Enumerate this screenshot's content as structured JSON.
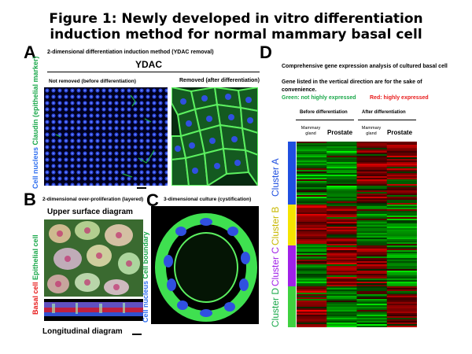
{
  "figure": {
    "title_line1": "Figure 1: Newly developed in vitro differentiation",
    "title_line2": "induction method for normal mammary basal cell"
  },
  "panel_a": {
    "label": "A",
    "subtitle": "2-dimensional differentiation induction method (YDAC removal)",
    "ydac": "YDAC",
    "col_left": "Not removed (before differentiation)",
    "col_right": "Removed (after differentiation)",
    "side_blue": "Cell nucleus",
    "side_green": "Claudin (epithelial marker)",
    "colors": {
      "blue": "#2f6ff0",
      "green": "#1aa84a"
    }
  },
  "panel_b": {
    "label": "B",
    "subtitle": "2-dimensional over-proliferation (layered)",
    "upper": "Upper surface diagram",
    "lower": "Longitudinal diagram",
    "side_red": "Basal cell",
    "side_green": "Epithelial cell",
    "colors": {
      "red": "#e81c1c",
      "green": "#1aa84a"
    }
  },
  "panel_c": {
    "label": "C",
    "subtitle": "3-dimensional culture (cystification)",
    "side_blue": "Cell nucleus",
    "side_green": "Cell boundary"
  },
  "panel_d": {
    "label": "D",
    "line1": "Comprehensive gene expression analysis of cultured basal cell",
    "line2": "Gene listed in the vertical direction are for the sake of",
    "line3": "convenience.",
    "legend_green": "Green: not highly expressed",
    "legend_red": "Red: highly expressed",
    "before": "Before differentiation",
    "after": "After differentiation",
    "mammary": "Mammary gland",
    "prostate": "Prostate",
    "clusters": [
      {
        "name": "Cluster A",
        "color": "#1f4fe0"
      },
      {
        "name": "Cluster B",
        "color": "#f5e400"
      },
      {
        "name": "Cluster C",
        "color": "#a020e8"
      },
      {
        "name": "Cluster D",
        "color": "#3fd13f"
      }
    ]
  }
}
